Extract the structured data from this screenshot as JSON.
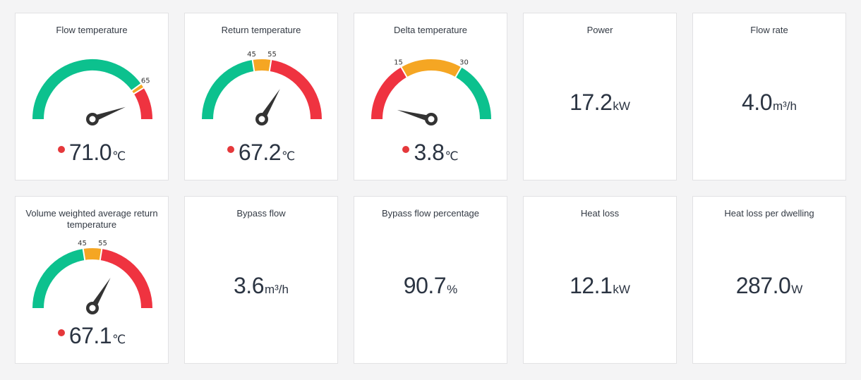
{
  "colors": {
    "green": "#0cc18e",
    "amber": "#f5a623",
    "red": "#ef3340",
    "needle": "#333333",
    "alert_dot": "#e5383b"
  },
  "cards": [
    {
      "title": "Flow temperature",
      "value": "71.0",
      "unit": "℃",
      "alert": true,
      "gauge": {
        "min": 0,
        "max": 80,
        "value": 71.0,
        "ticks": [
          "65"
        ],
        "bands": [
          {
            "from": 0,
            "to": 64,
            "color": "green"
          },
          {
            "from": 64,
            "to": 66,
            "color": "amber"
          },
          {
            "from": 66,
            "to": 80,
            "color": "red"
          }
        ]
      }
    },
    {
      "title": "Return temperature",
      "value": "67.2",
      "unit": "℃",
      "alert": true,
      "gauge": {
        "min": 0,
        "max": 100,
        "value": 67.2,
        "ticks": [
          "45",
          "55"
        ],
        "bands": [
          {
            "from": 0,
            "to": 45,
            "color": "green"
          },
          {
            "from": 45,
            "to": 55,
            "color": "amber"
          },
          {
            "from": 55,
            "to": 100,
            "color": "red"
          }
        ]
      }
    },
    {
      "title": "Delta temperature",
      "value": "3.8",
      "unit": "℃",
      "alert": true,
      "gauge": {
        "min": 0,
        "max": 45,
        "value": 3.8,
        "ticks": [
          "15",
          "30"
        ],
        "bands": [
          {
            "from": 0,
            "to": 15,
            "color": "red"
          },
          {
            "from": 15,
            "to": 30,
            "color": "amber"
          },
          {
            "from": 30,
            "to": 45,
            "color": "green"
          }
        ]
      }
    },
    {
      "title": "Power",
      "value": "17.2",
      "unit": "kW"
    },
    {
      "title": "Flow rate",
      "value": "4.0",
      "unit": "m³/h"
    },
    {
      "title": "Volume weighted average return temperature",
      "value": "67.1",
      "unit": "℃",
      "alert": true,
      "gauge": {
        "min": 0,
        "max": 100,
        "value": 67.1,
        "ticks": [
          "45",
          "55"
        ],
        "bands": [
          {
            "from": 0,
            "to": 45,
            "color": "green"
          },
          {
            "from": 45,
            "to": 55,
            "color": "amber"
          },
          {
            "from": 55,
            "to": 100,
            "color": "red"
          }
        ]
      }
    },
    {
      "title": "Bypass flow",
      "value": "3.6",
      "unit": "m³/h"
    },
    {
      "title": "Bypass flow percentage",
      "value": "90.7",
      "unit": "%"
    },
    {
      "title": "Heat loss",
      "value": "12.1",
      "unit": "kW"
    },
    {
      "title": "Heat loss per dwelling",
      "value": "287.0",
      "unit": "W"
    }
  ]
}
